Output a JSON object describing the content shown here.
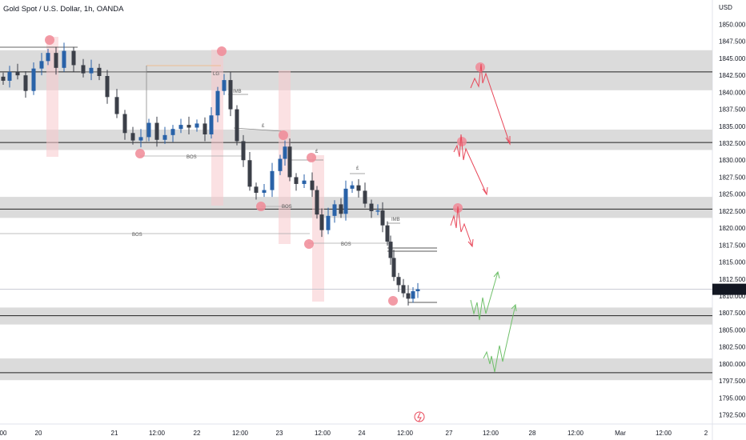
{
  "header": {
    "title": "Gold Spot / U.S. Dollar, 1h, OANDA",
    "currency": "USD"
  },
  "price_label": {
    "value": "1810.985",
    "color": "#131722"
  },
  "colors": {
    "bull": "#2962a8",
    "bear": "#3b3f48",
    "zone": "#d9d9d9",
    "highlight": "#f8c9cc",
    "marker": "#f08a96",
    "sell_arrow": "#e8485a",
    "buy_arrow": "#6fc06a"
  },
  "chart_data": {
    "type": "candlestick",
    "title": "Gold Spot / U.S. Dollar, 1h, OANDA",
    "ylabel": "USD",
    "ylim": [
      1791.3,
      1852.4
    ],
    "y_ticks": [
      "1850.000",
      "1847.500",
      "1845.000",
      "1842.500",
      "1840.000",
      "1837.500",
      "1835.000",
      "1832.500",
      "1830.000",
      "1827.500",
      "1825.000",
      "1822.500",
      "1820.000",
      "1817.500",
      "1815.000",
      "1812.500",
      "1810.000",
      "1807.500",
      "1805.000",
      "1802.500",
      "1800.000",
      "1797.500",
      "1795.000",
      "1792.500"
    ],
    "x_ticks": [
      "00",
      "20",
      "21",
      "12:00",
      "22",
      "12:00",
      "23",
      "12:00",
      "24",
      "12:00",
      "27",
      "12:00",
      "28",
      "12:00",
      "Mar",
      "12:00",
      "2"
    ],
    "zones": [
      {
        "low": 1840.3,
        "high": 1846.2,
        "line": 1843.0
      },
      {
        "low": 1831.5,
        "high": 1834.5,
        "line": 1832.6
      },
      {
        "low": 1821.5,
        "high": 1824.6,
        "line": 1822.8
      },
      {
        "low": 1805.8,
        "high": 1808.3,
        "line": 1807.1
      },
      {
        "low": 1797.6,
        "high": 1800.8,
        "line": 1798.7
      }
    ],
    "labels": [
      "LG",
      "IMB",
      "£",
      "BOS",
      "BOS",
      "BOS",
      "£",
      "£",
      "BOS",
      "IMB"
    ],
    "last_price": 1810.985
  },
  "annotations": {
    "lg": "LG",
    "imb": "IMB",
    "bos": "BOS",
    "pound": "£"
  }
}
